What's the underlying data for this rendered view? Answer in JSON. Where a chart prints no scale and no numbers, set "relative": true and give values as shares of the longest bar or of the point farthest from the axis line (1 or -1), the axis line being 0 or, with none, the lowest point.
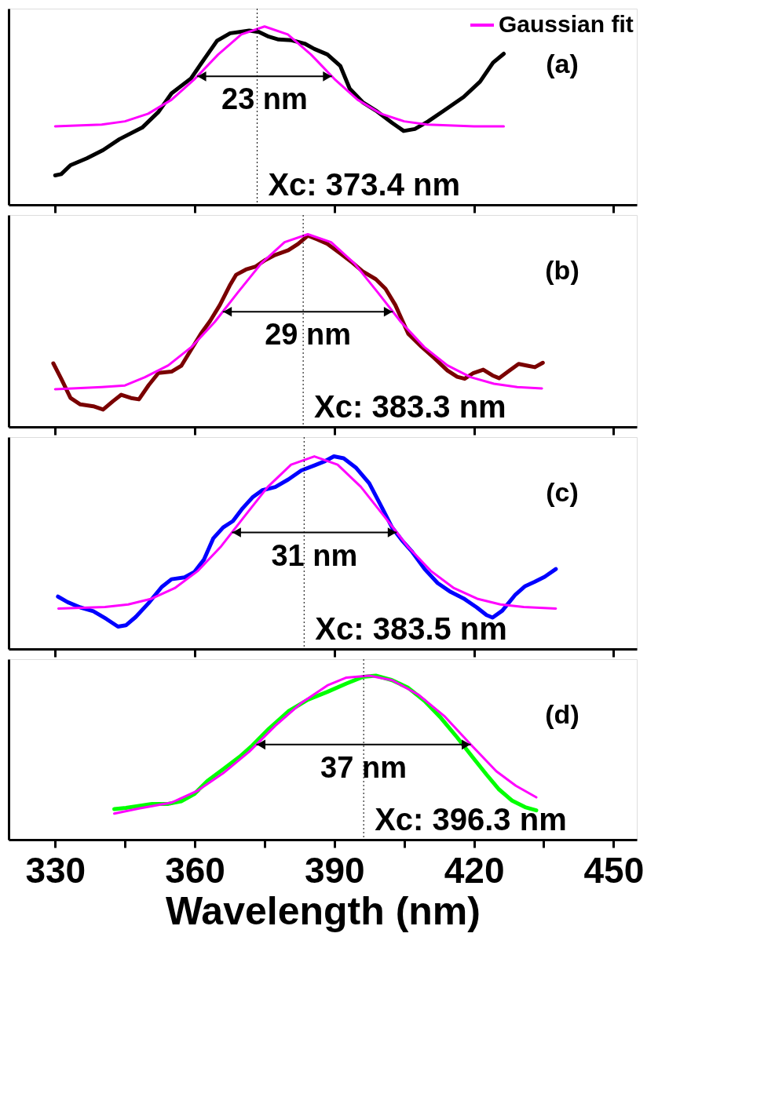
{
  "chart_data": [
    {
      "type": "line",
      "relative": true,
      "xlim": [
        320,
        455
      ],
      "xticks": [
        330,
        360,
        390,
        420,
        450
      ],
      "tick_labels": false,
      "legend": "top right",
      "annotations": [
        "(a)",
        "23 nm"
      ],
      "ref_lines": [
        {
          "axis": "x",
          "value": 373.4,
          "label": "Xc: 373.4 nm",
          "line_style": "dotted",
          "color": "#000000"
        }
      ],
      "series": [
        {
          "color": "#000000",
          "x": [
            330,
            331.3,
            333.3,
            336.8,
            340.3,
            343.8,
            348.7,
            352.2,
            355.0,
            359.2,
            362.0,
            364.8,
            367.6,
            371.7,
            373.8,
            375.9,
            378.0,
            380.8,
            383.6,
            385.7,
            388.5,
            391.3,
            393.3,
            396.1,
            398.9,
            402.4,
            404.9,
            407.3,
            410.1,
            413.6,
            417.8,
            421.3,
            424.1,
            426.4
          ],
          "values": [
            0.165,
            0.172,
            0.222,
            0.261,
            0.307,
            0.368,
            0.433,
            0.521,
            0.625,
            0.709,
            0.816,
            0.92,
            0.962,
            0.977,
            0.969,
            0.943,
            0.927,
            0.923,
            0.904,
            0.874,
            0.843,
            0.778,
            0.651,
            0.575,
            0.529,
            0.46,
            0.414,
            0.425,
            0.467,
            0.529,
            0.605,
            0.69,
            0.797,
            0.847
          ]
        },
        {
          "name": "Gaussian fit",
          "color": "#ff00ff",
          "x": [
            330,
            340,
            345,
            350,
            355,
            360,
            365,
            370,
            375,
            380,
            385,
            390,
            395,
            400,
            405,
            410,
            420,
            426.4
          ],
          "values": [
            0.44,
            0.45,
            0.468,
            0.511,
            0.589,
            0.706,
            0.842,
            0.955,
            1.0,
            0.955,
            0.842,
            0.706,
            0.589,
            0.511,
            0.468,
            0.45,
            0.44,
            0.44
          ]
        }
      ]
    },
    {
      "type": "line",
      "relative": true,
      "xlim": [
        320,
        455
      ],
      "xticks": [
        330,
        360,
        390,
        420,
        450
      ],
      "tick_labels": false,
      "annotations": [
        "(b)",
        "29 nm"
      ],
      "ref_lines": [
        {
          "axis": "x",
          "value": 383.3,
          "label": "Xc: 383.3 nm",
          "line_style": "dotted",
          "color": "#000000"
        }
      ],
      "series": [
        {
          "color": "#7a0000",
          "x": [
            329.6,
            331.3,
            333.3,
            335.4,
            338.2,
            340.3,
            342.4,
            344.2,
            346.3,
            348.0,
            350.1,
            352.2,
            355.0,
            357.1,
            359.2,
            361.3,
            363.3,
            365.4,
            367.5,
            368.9,
            371.0,
            373.1,
            375.2,
            377.3,
            380.1,
            382.2,
            384.3,
            386.4,
            388.5,
            391.3,
            394.0,
            396.1,
            398.9,
            401.0,
            403.1,
            405.9,
            408.7,
            411.5,
            414.3,
            416.4,
            418.0,
            419.9,
            422.0,
            424.0,
            425.4,
            427.5,
            429.6,
            431.7,
            433.1,
            434.8
          ],
          "values": [
            0.33,
            0.25,
            0.15,
            0.117,
            0.107,
            0.09,
            0.133,
            0.167,
            0.15,
            0.143,
            0.217,
            0.28,
            0.287,
            0.317,
            0.4,
            0.483,
            0.55,
            0.633,
            0.733,
            0.79,
            0.817,
            0.833,
            0.867,
            0.893,
            0.917,
            0.95,
            0.993,
            0.973,
            0.95,
            0.9,
            0.85,
            0.807,
            0.767,
            0.717,
            0.633,
            0.483,
            0.417,
            0.357,
            0.293,
            0.26,
            0.25,
            0.28,
            0.297,
            0.267,
            0.253,
            0.29,
            0.327,
            0.317,
            0.31,
            0.333
          ]
        },
        {
          "color": "#ff00ff",
          "x": [
            330,
            340,
            345,
            349.3,
            354.3,
            359.3,
            364.3,
            369.3,
            374.3,
            379.3,
            384.3,
            389.3,
            394.3,
            399.3,
            404.3,
            409.3,
            414.3,
            419.3,
            424.3,
            429.3,
            434.6
          ],
          "values": [
            0.196,
            0.207,
            0.215,
            0.258,
            0.319,
            0.415,
            0.545,
            0.699,
            0.849,
            0.959,
            1.0,
            0.959,
            0.849,
            0.699,
            0.545,
            0.415,
            0.319,
            0.258,
            0.224,
            0.207,
            0.2
          ]
        }
      ]
    },
    {
      "type": "line",
      "relative": true,
      "xlim": [
        320,
        455
      ],
      "xticks": [
        330,
        360,
        390,
        420,
        450
      ],
      "tick_labels": false,
      "annotations": [
        "(c)",
        "31 nm"
      ],
      "ref_lines": [
        {
          "axis": "x",
          "value": 383.5,
          "label": "Xc: 383.5 nm",
          "line_style": "dotted",
          "color": "#000000"
        }
      ],
      "series": [
        {
          "color": "#0000ff",
          "x": [
            330.6,
            332.7,
            335.4,
            338.2,
            341.0,
            343.5,
            345.2,
            347.3,
            350.1,
            352.9,
            355.0,
            357.8,
            359.9,
            362.0,
            364.0,
            366.1,
            368.2,
            370.3,
            372.4,
            374.5,
            377.3,
            380.1,
            382.9,
            385.7,
            387.8,
            389.9,
            392.0,
            394.7,
            397.5,
            400.3,
            402.4,
            404.5,
            406.6,
            409.4,
            412.2,
            415.0,
            417.8,
            420.6,
            422.7,
            424.0,
            426.1,
            428.9,
            431.0,
            433.1,
            435.2,
            437.6
          ],
          "values": [
            0.272,
            0.243,
            0.216,
            0.196,
            0.156,
            0.116,
            0.123,
            0.166,
            0.239,
            0.322,
            0.362,
            0.372,
            0.399,
            0.465,
            0.575,
            0.631,
            0.664,
            0.731,
            0.787,
            0.824,
            0.841,
            0.88,
            0.927,
            0.953,
            0.973,
            1.0,
            0.99,
            0.94,
            0.86,
            0.731,
            0.631,
            0.565,
            0.508,
            0.415,
            0.342,
            0.296,
            0.262,
            0.216,
            0.176,
            0.163,
            0.199,
            0.282,
            0.326,
            0.349,
            0.375,
            0.415
          ]
        },
        {
          "color": "#ff00ff",
          "x": [
            330.7,
            340.7,
            345.7,
            350.7,
            355.7,
            360.7,
            365.7,
            370.7,
            375.7,
            380.7,
            385.7,
            390.7,
            395.7,
            400.7,
            405.7,
            410.7,
            415.7,
            420.7,
            425.7,
            430.7,
            437.6
          ],
          "values": [
            0.21,
            0.218,
            0.231,
            0.261,
            0.316,
            0.406,
            0.534,
            0.689,
            0.842,
            0.957,
            1.0,
            0.957,
            0.842,
            0.689,
            0.534,
            0.406,
            0.316,
            0.261,
            0.231,
            0.218,
            0.21
          ]
        }
      ]
    },
    {
      "type": "line",
      "relative": true,
      "xlim": [
        320,
        455
      ],
      "xticks": [
        330,
        {
          "value": 345,
          "label": null
        },
        360,
        {
          "value": 375,
          "label": null
        },
        390,
        {
          "value": 405,
          "label": null
        },
        420,
        {
          "value": 435,
          "label": null
        },
        450
      ],
      "tick_labels": "x",
      "xlabel": "Wavelength (nm)",
      "annotations": [
        "(d)",
        "37 nm"
      ],
      "ref_lines": [
        {
          "axis": "x",
          "value": 396.3,
          "label": "Xc: 396.3 nm",
          "line_style": "dotted",
          "color": "#000000"
        }
      ],
      "series": [
        {
          "color": "#00ff00",
          "x": [
            342.7,
            345.2,
            348.0,
            350.8,
            354.3,
            357.1,
            359.9,
            362.7,
            366.1,
            369.6,
            372.4,
            375.9,
            380.1,
            384.3,
            388.5,
            392.6,
            396.1,
            398.9,
            402.4,
            405.9,
            409.4,
            412.9,
            416.4,
            419.9,
            422.7,
            425.4,
            428.2,
            431.0,
            433.4
          ],
          "values": [
            0.187,
            0.194,
            0.206,
            0.218,
            0.218,
            0.234,
            0.278,
            0.357,
            0.429,
            0.504,
            0.575,
            0.675,
            0.782,
            0.853,
            0.901,
            0.952,
            0.992,
            1.0,
            0.972,
            0.925,
            0.845,
            0.742,
            0.623,
            0.496,
            0.397,
            0.306,
            0.238,
            0.198,
            0.179
          ]
        },
        {
          "color": "#ff00ff",
          "x": [
            342.7,
            348,
            355,
            360.6,
            366.1,
            371.7,
            377.3,
            382.9,
            388.5,
            392.6,
            397.5,
            402.4,
            408,
            413.6,
            419.2,
            424.8,
            429,
            433.4
          ],
          "values": [
            0.159,
            0.19,
            0.226,
            0.298,
            0.405,
            0.536,
            0.694,
            0.833,
            0.94,
            0.988,
            1.0,
            0.972,
            0.885,
            0.754,
            0.583,
            0.417,
            0.329,
            0.258
          ]
        }
      ]
    }
  ]
}
